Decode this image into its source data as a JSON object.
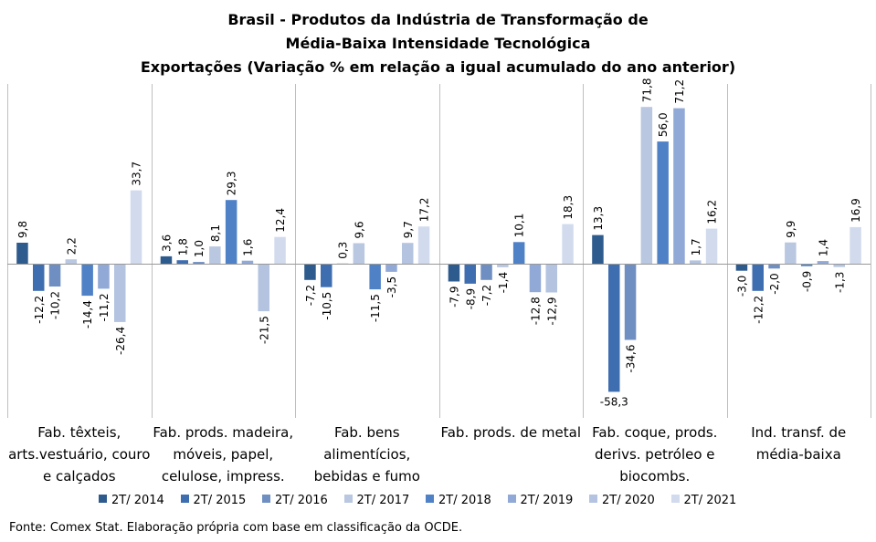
{
  "title": {
    "line1": "Brasil - Produtos da Indústria de Transformação de",
    "line2": "Média-Baixa Intensidade Tecnológica",
    "line3": "Exportações (Variação % em relação a igual acumulado do ano anterior)"
  },
  "source": "Fonte: Comex Stat. Elaboração própria com base em classificação da OCDE.",
  "colors": [
    "#2e5b8e",
    "#3f6eb0",
    "#6f8fc2",
    "#b9c7e0",
    "#4f81c7",
    "#91a9d6",
    "#b3c3e0",
    "#d2dbed"
  ],
  "chart_data": {
    "type": "bar",
    "categories": [
      "Fab. têxteis, arts.vestuário, couro e calçados",
      "Fab. prods. madeira, móveis, papel, celulose, impress.",
      "Fab. bens alimentícios, bebidas e fumo",
      "Fab. prods. de metal",
      "Fab. coque, prods. derivs. petróleo e biocombs.",
      "Ind. transf. de média-baixa"
    ],
    "category_lines": [
      [
        "Fab. têxteis,",
        "arts.vestuário, couro",
        "e calçados"
      ],
      [
        "Fab. prods. madeira,",
        "móveis, papel,",
        "celulose, impress."
      ],
      [
        "Fab. bens",
        "alimentícios,",
        "bebidas e fumo"
      ],
      [
        "Fab. prods. de metal"
      ],
      [
        "Fab. coque, prods.",
        "derivs. petróleo e",
        "biocombs."
      ],
      [
        "Ind. transf. de",
        "média-baixa"
      ]
    ],
    "series": [
      {
        "name": "2T/ 2014",
        "values": [
          9.8,
          3.6,
          -7.2,
          -7.9,
          13.3,
          -3.0
        ]
      },
      {
        "name": "2T/ 2015",
        "values": [
          -12.2,
          1.8,
          -10.5,
          -8.9,
          -58.3,
          -12.2
        ]
      },
      {
        "name": "2T/ 2016",
        "values": [
          -10.2,
          1.0,
          0.3,
          -7.2,
          -34.6,
          -2.0
        ]
      },
      {
        "name": "2T/ 2017",
        "values": [
          2.2,
          8.1,
          9.6,
          -1.4,
          71.8,
          9.9
        ]
      },
      {
        "name": "2T/ 2018",
        "values": [
          -14.4,
          29.3,
          -11.5,
          10.1,
          56.0,
          -0.9
        ]
      },
      {
        "name": "2T/ 2019",
        "values": [
          -11.2,
          1.6,
          -3.5,
          -12.8,
          71.2,
          1.4
        ]
      },
      {
        "name": "2T/ 2020",
        "values": [
          -26.4,
          -21.5,
          9.7,
          -12.9,
          1.7,
          -1.3
        ]
      },
      {
        "name": "2T/ 2021",
        "values": [
          33.7,
          12.4,
          17.2,
          18.3,
          16.2,
          16.9
        ]
      }
    ],
    "data_labels": [
      [
        "9,8",
        "-12,2",
        "-10,2",
        "2,2",
        "-14,4",
        "-11,2",
        "-26,4",
        "33,7"
      ],
      [
        "3,6",
        "1,8",
        "1,0",
        "8,1",
        "29,3",
        "1,6",
        "-21,5",
        "12,4"
      ],
      [
        "-7,2",
        "-10,5",
        "0,3",
        "9,6",
        "-11,5",
        "-3,5",
        "9,7",
        "17,2"
      ],
      [
        "-7,9",
        "-8,9",
        "-7,2",
        "-1,4",
        "10,1",
        "-12,8",
        "-12,9",
        "18,3"
      ],
      [
        "13,3",
        "-58,3",
        "-34,6",
        "71,8",
        "56,0",
        "71,2",
        "1,7",
        "16,2"
      ],
      [
        "-3,0",
        "-12,2",
        "-2,0",
        "9,9",
        "-0,9",
        "1,4",
        "-1,3",
        "16,9"
      ]
    ],
    "xlabel": "",
    "ylabel": "",
    "legend": "bottom",
    "grid": false
  }
}
